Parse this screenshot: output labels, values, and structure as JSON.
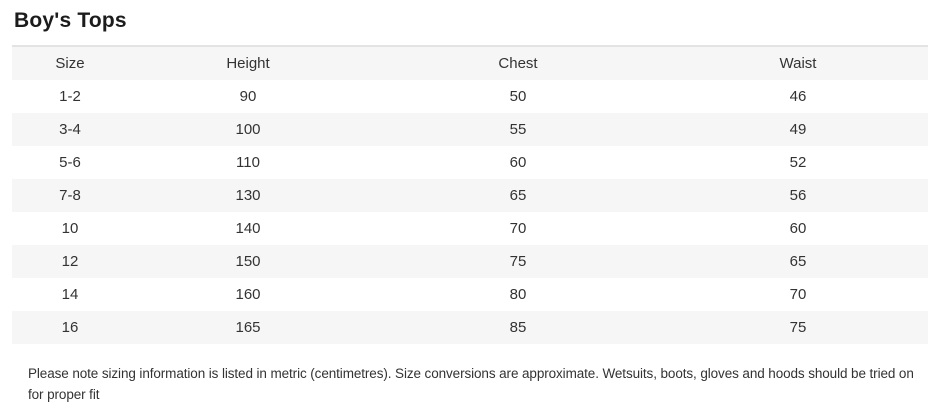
{
  "page": {
    "title": "Boy's Tops"
  },
  "size_table": {
    "columns": [
      "Size",
      "Height",
      "Chest",
      "Waist"
    ],
    "rows": [
      [
        "1-2",
        "90",
        "50",
        "46"
      ],
      [
        "3-4",
        "100",
        "55",
        "49"
      ],
      [
        "5-6",
        "110",
        "60",
        "52"
      ],
      [
        "7-8",
        "130",
        "65",
        "56"
      ],
      [
        "10",
        "140",
        "70",
        "60"
      ],
      [
        "12",
        "150",
        "75",
        "65"
      ],
      [
        "14",
        "160",
        "80",
        "70"
      ],
      [
        "16",
        "165",
        "85",
        "75"
      ]
    ]
  },
  "footnote": "Please note sizing information is listed in metric (centimetres). Size conversions are approximate. Wetsuits, boots, gloves and hoods should be tried on for proper fit",
  "colors": {
    "stripe": "#f6f6f6",
    "table_top_border": "#e3e3e3",
    "text": "#333333",
    "title_text": "#1c1c1c"
  }
}
